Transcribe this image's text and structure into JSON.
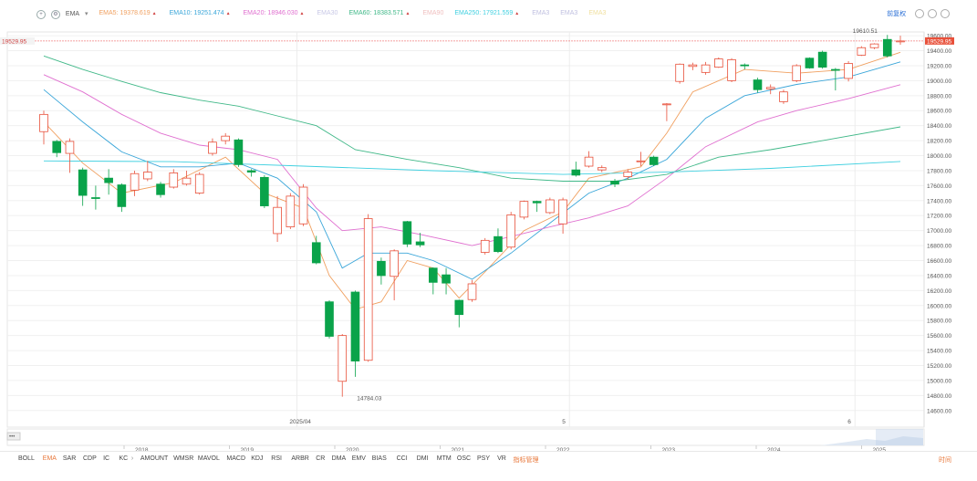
{
  "toolbar": {
    "indicator": "EMA",
    "ema_items": [
      {
        "label": "EMA5:",
        "value": "19378.619",
        "color": "#f0a060",
        "marker": true
      },
      {
        "label": "EMA10:",
        "value": "19251.474",
        "color": "#3aa6d9",
        "marker": true
      },
      {
        "label": "EMA20:",
        "value": "18946.030",
        "color": "#e070d0",
        "marker": true
      },
      {
        "label": "EMA30",
        "value": "",
        "color": "#c8c8e6",
        "marker": false
      },
      {
        "label": "EMA60:",
        "value": "18383.571",
        "color": "#40b888",
        "marker": true
      },
      {
        "label": "EMA90",
        "value": "",
        "color": "#f0c0c0",
        "marker": false
      },
      {
        "label": "EMA250:",
        "value": "17921.559",
        "color": "#40d0e0",
        "marker": true
      },
      {
        "label": "EMA3",
        "value": "",
        "color": "#c0c0e0",
        "marker": false
      },
      {
        "label": "EMA3",
        "value": "",
        "color": "#c0c0e0",
        "marker": false
      },
      {
        "label": "EMA3",
        "value": "",
        "color": "#f0e0a0",
        "marker": false
      }
    ],
    "right_link": "前复权"
  },
  "chart_data": {
    "type": "candlestick",
    "ylim": [
      14500,
      19650
    ],
    "y_ticks": [
      "19600.00",
      "19400.00",
      "19200.00",
      "19000.00",
      "18800.00",
      "18600.00",
      "18400.00",
      "18200.00",
      "18000.00",
      "17800.00",
      "17600.00",
      "17400.00",
      "17200.00",
      "17000.00",
      "16800.00",
      "16600.00",
      "16400.00",
      "16200.00",
      "16000.00",
      "15800.00",
      "15600.00",
      "15400.00",
      "15200.00",
      "15000.00",
      "14800.00",
      "14600.00"
    ],
    "current_price": "19529.95",
    "high_label": "19610.51",
    "low_label": "14784.03",
    "month_labels": [
      {
        "label": "2025/04",
        "index": 20
      },
      {
        "label": "5",
        "index": 41
      },
      {
        "label": "6",
        "index": 63
      }
    ],
    "candles": [
      {
        "o": 18320,
        "c": 18550,
        "h": 18600,
        "l": 18150
      },
      {
        "o": 18190,
        "c": 18040,
        "h": 18210,
        "l": 17980
      },
      {
        "o": 18030,
        "c": 18190,
        "h": 18230,
        "l": 17770
      },
      {
        "o": 17810,
        "c": 17470,
        "h": 17840,
        "l": 17330
      },
      {
        "o": 17440,
        "c": 17430,
        "h": 17600,
        "l": 17280
      },
      {
        "o": 17700,
        "c": 17640,
        "h": 17820,
        "l": 17480
      },
      {
        "o": 17610,
        "c": 17320,
        "h": 17630,
        "l": 17250
      },
      {
        "o": 17540,
        "c": 17760,
        "h": 17800,
        "l": 17460
      },
      {
        "o": 17690,
        "c": 17780,
        "h": 17930,
        "l": 17660
      },
      {
        "o": 17620,
        "c": 17480,
        "h": 17650,
        "l": 17440
      },
      {
        "o": 17580,
        "c": 17770,
        "h": 17820,
        "l": 17560
      },
      {
        "o": 17620,
        "c": 17700,
        "h": 17800,
        "l": 17600
      },
      {
        "o": 17500,
        "c": 17750,
        "h": 17780,
        "l": 17480
      },
      {
        "o": 18030,
        "c": 18180,
        "h": 18230,
        "l": 18000
      },
      {
        "o": 18200,
        "c": 18260,
        "h": 18300,
        "l": 18150
      },
      {
        "o": 18210,
        "c": 17880,
        "h": 18230,
        "l": 17850
      },
      {
        "o": 17800,
        "c": 17780,
        "h": 17820,
        "l": 17720
      },
      {
        "o": 17710,
        "c": 17330,
        "h": 17740,
        "l": 17300
      },
      {
        "o": 16960,
        "c": 17310,
        "h": 17460,
        "l": 16850
      },
      {
        "o": 17050,
        "c": 17460,
        "h": 17500,
        "l": 17020
      },
      {
        "o": 17090,
        "c": 17580,
        "h": 17620,
        "l": 17060
      },
      {
        "o": 16840,
        "c": 16570,
        "h": 16930,
        "l": 16550
      },
      {
        "o": 16050,
        "c": 15590,
        "h": 16070,
        "l": 15560
      },
      {
        "o": 14990,
        "c": 15600,
        "h": 15620,
        "l": 14784
      },
      {
        "o": 16180,
        "c": 15260,
        "h": 16200,
        "l": 15050
      },
      {
        "o": 15270,
        "c": 17160,
        "h": 17220,
        "l": 15250
      },
      {
        "o": 16590,
        "c": 16400,
        "h": 16640,
        "l": 16280
      },
      {
        "o": 16390,
        "c": 16730,
        "h": 16750,
        "l": 16070
      },
      {
        "o": 17120,
        "c": 16820,
        "h": 17130,
        "l": 16780
      },
      {
        "o": 16850,
        "c": 16810,
        "h": 16970,
        "l": 16780
      },
      {
        "o": 16500,
        "c": 16310,
        "h": 16510,
        "l": 16150
      },
      {
        "o": 16410,
        "c": 16300,
        "h": 16500,
        "l": 16150
      },
      {
        "o": 16070,
        "c": 15880,
        "h": 16080,
        "l": 15710
      },
      {
        "o": 16080,
        "c": 16290,
        "h": 16340,
        "l": 16050
      },
      {
        "o": 16710,
        "c": 16870,
        "h": 16900,
        "l": 16680
      },
      {
        "o": 16920,
        "c": 16720,
        "h": 17030,
        "l": 16700
      },
      {
        "o": 16780,
        "c": 17210,
        "h": 17250,
        "l": 16750
      },
      {
        "o": 17180,
        "c": 17390,
        "h": 17400,
        "l": 17150
      },
      {
        "o": 17390,
        "c": 17370,
        "h": 17400,
        "l": 17250
      },
      {
        "o": 17240,
        "c": 17410,
        "h": 17440,
        "l": 17220
      },
      {
        "o": 17090,
        "c": 17410,
        "h": 17440,
        "l": 16960
      },
      {
        "o": 17810,
        "c": 17740,
        "h": 17920,
        "l": 17720
      },
      {
        "o": 17860,
        "c": 17980,
        "h": 18060,
        "l": 17840
      },
      {
        "o": 17810,
        "c": 17840,
        "h": 17870,
        "l": 17780
      },
      {
        "o": 17660,
        "c": 17620,
        "h": 17690,
        "l": 17580
      },
      {
        "o": 17720,
        "c": 17780,
        "h": 17820,
        "l": 17680
      },
      {
        "o": 17930,
        "c": 17930,
        "h": 18050,
        "l": 17860
      },
      {
        "o": 17980,
        "c": 17880,
        "h": 18000,
        "l": 17860
      },
      {
        "o": 18690,
        "c": 18690,
        "h": 18700,
        "l": 18460
      },
      {
        "o": 18990,
        "c": 19220,
        "h": 19230,
        "l": 18960
      },
      {
        "o": 19190,
        "c": 19210,
        "h": 19240,
        "l": 19140
      },
      {
        "o": 19110,
        "c": 19210,
        "h": 19250,
        "l": 19080
      },
      {
        "o": 19180,
        "c": 19290,
        "h": 19310,
        "l": 19170
      },
      {
        "o": 19000,
        "c": 19280,
        "h": 19300,
        "l": 18980
      },
      {
        "o": 19210,
        "c": 19200,
        "h": 19230,
        "l": 19150
      },
      {
        "o": 19010,
        "c": 18880,
        "h": 19040,
        "l": 18840
      },
      {
        "o": 18890,
        "c": 18910,
        "h": 18950,
        "l": 18820
      },
      {
        "o": 18720,
        "c": 18850,
        "h": 18880,
        "l": 18690
      },
      {
        "o": 19000,
        "c": 19200,
        "h": 19220,
        "l": 18980
      },
      {
        "o": 19300,
        "c": 19170,
        "h": 19310,
        "l": 19160
      },
      {
        "o": 19380,
        "c": 19180,
        "h": 19400,
        "l": 19160
      },
      {
        "o": 19150,
        "c": 19140,
        "h": 19170,
        "l": 18870
      },
      {
        "o": 19030,
        "c": 19230,
        "h": 19260,
        "l": 18990
      },
      {
        "o": 19340,
        "c": 19440,
        "h": 19460,
        "l": 19330
      },
      {
        "o": 19440,
        "c": 19490,
        "h": 19500,
        "l": 19420
      },
      {
        "o": 19550,
        "c": 19330,
        "h": 19610.51,
        "l": 19310
      },
      {
        "o": 19520,
        "c": 19529.95,
        "h": 19600,
        "l": 19480
      }
    ],
    "ema_series": [
      {
        "name": "EMA5",
        "color": "#f0a060",
        "points": [
          [
            0,
            18450
          ],
          [
            3,
            17900
          ],
          [
            6,
            17500
          ],
          [
            10,
            17640
          ],
          [
            14,
            17980
          ],
          [
            17,
            17500
          ],
          [
            20,
            17300
          ],
          [
            22,
            16400
          ],
          [
            24,
            15950
          ],
          [
            26,
            16050
          ],
          [
            28,
            16600
          ],
          [
            30,
            16500
          ],
          [
            32,
            16100
          ],
          [
            34,
            16450
          ],
          [
            37,
            17000
          ],
          [
            40,
            17250
          ],
          [
            42,
            17700
          ],
          [
            46,
            17850
          ],
          [
            48,
            18300
          ],
          [
            50,
            18850
          ],
          [
            54,
            19150
          ],
          [
            58,
            19100
          ],
          [
            62,
            19150
          ],
          [
            66,
            19379
          ]
        ]
      },
      {
        "name": "EMA10",
        "color": "#3aa6d9",
        "points": [
          [
            0,
            18880
          ],
          [
            3,
            18450
          ],
          [
            6,
            18050
          ],
          [
            9,
            17850
          ],
          [
            12,
            17850
          ],
          [
            15,
            17900
          ],
          [
            18,
            17700
          ],
          [
            21,
            17250
          ],
          [
            23,
            16500
          ],
          [
            25,
            16700
          ],
          [
            28,
            16700
          ],
          [
            30,
            16600
          ],
          [
            33,
            16350
          ],
          [
            36,
            16700
          ],
          [
            39,
            17100
          ],
          [
            42,
            17500
          ],
          [
            45,
            17700
          ],
          [
            48,
            17950
          ],
          [
            51,
            18500
          ],
          [
            54,
            18800
          ],
          [
            58,
            18950
          ],
          [
            62,
            19050
          ],
          [
            66,
            19251
          ]
        ]
      },
      {
        "name": "EMA20",
        "color": "#e070d0",
        "points": [
          [
            0,
            19080
          ],
          [
            3,
            18850
          ],
          [
            6,
            18550
          ],
          [
            9,
            18300
          ],
          [
            12,
            18140
          ],
          [
            15,
            18080
          ],
          [
            18,
            17950
          ],
          [
            21,
            17300
          ],
          [
            23,
            17000
          ],
          [
            26,
            17050
          ],
          [
            29,
            16950
          ],
          [
            33,
            16800
          ],
          [
            36,
            16920
          ],
          [
            39,
            17050
          ],
          [
            42,
            17170
          ],
          [
            45,
            17330
          ],
          [
            48,
            17700
          ],
          [
            51,
            18120
          ],
          [
            55,
            18450
          ],
          [
            58,
            18600
          ],
          [
            62,
            18760
          ],
          [
            66,
            18946
          ]
        ]
      },
      {
        "name": "EMA60",
        "color": "#40b888",
        "points": [
          [
            0,
            19330
          ],
          [
            3,
            19150
          ],
          [
            6,
            18990
          ],
          [
            9,
            18840
          ],
          [
            12,
            18740
          ],
          [
            15,
            18660
          ],
          [
            18,
            18530
          ],
          [
            21,
            18400
          ],
          [
            24,
            18080
          ],
          [
            28,
            17950
          ],
          [
            32,
            17840
          ],
          [
            36,
            17700
          ],
          [
            40,
            17660
          ],
          [
            44,
            17660
          ],
          [
            48,
            17750
          ],
          [
            52,
            17980
          ],
          [
            56,
            18080
          ],
          [
            60,
            18200
          ],
          [
            66,
            18384
          ]
        ]
      },
      {
        "name": "EMA250",
        "color": "#40d0e0",
        "points": [
          [
            0,
            17930
          ],
          [
            10,
            17920
          ],
          [
            20,
            17860
          ],
          [
            30,
            17800
          ],
          [
            40,
            17750
          ],
          [
            48,
            17780
          ],
          [
            56,
            17830
          ],
          [
            66,
            17922
          ]
        ]
      }
    ]
  },
  "navigator": {
    "years": [
      "2018",
      "2019",
      "2020",
      "2021",
      "2022",
      "2023",
      "2024",
      "2025"
    ]
  },
  "bottom_tabs": [
    "BOLL",
    "EMA",
    "SAR",
    "CDP",
    "IC",
    "KC",
    "AMOUNT",
    "WMSR",
    "MAVOL",
    "MACD",
    "KDJ",
    "RSI",
    "ARBR",
    "CR",
    "DMA",
    "EMV",
    "BIAS",
    "CCI",
    "DMI",
    "MTM",
    "OSC",
    "PSY",
    "VR",
    "指标管理"
  ],
  "bottom_right": "时间",
  "colors": {
    "up": "#e8503a",
    "down": "#0aa34a"
  }
}
